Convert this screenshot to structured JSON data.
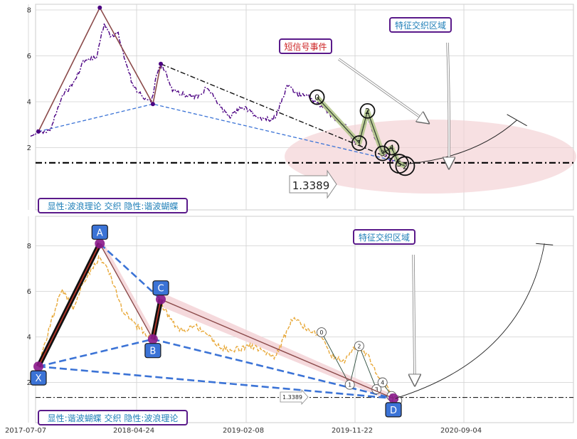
{
  "colors": {
    "price_top": "#4b0082",
    "price_bottom": "#e8a93a",
    "wave_line": "#8b4a4a",
    "support_line": "#3b73d6",
    "bar_fill": "#2b2b2b",
    "pink_zone": "#f2cfd3",
    "harmonic_point": "#8b1a8b",
    "label_box": "#3b73d6",
    "text_blue": "#1f7fb8",
    "text_red": "#cc2222",
    "border_purple": "#5a1a8a"
  },
  "annotations": {
    "top_feature": "特征交织区域",
    "top_signal": "短信号事件",
    "top_level": "1.3389",
    "top_legend": "显性:波浪理论 交织 隐性:谐波蝴蝶",
    "bottom_feature": "特征交织区域",
    "bottom_level": "1.3389",
    "bottom_legend": "显性:谐波蝴蝶 交织 隐性:波浪理论"
  },
  "chart_data": [
    {
      "type": "line",
      "panel": "top",
      "x_ticks": [
        "2017-07-07",
        "2018-04-24",
        "2019-02-08",
        "2019-11-22",
        "2020-09-04"
      ],
      "y_ticks": [
        2,
        4,
        6,
        8
      ],
      "ylim": [
        0.6,
        9.2
      ],
      "grid": true,
      "series": [
        {
          "style": "dash-dot price",
          "points": [
            [
              "2017-07-20",
              2.5
            ],
            [
              "2017-08-10",
              2.7
            ],
            [
              "2017-09-10",
              2.7
            ],
            [
              "2017-10-10",
              4.2
            ],
            [
              "2017-11-10",
              4.8
            ],
            [
              "2017-12-10",
              5.8
            ],
            [
              "2018-01-10",
              5.9
            ],
            [
              "2018-02-01",
              7.4
            ],
            [
              "2018-02-20",
              6.8
            ],
            [
              "2018-03-10",
              7.0
            ],
            [
              "2018-04-01",
              5.6
            ],
            [
              "2018-04-20",
              4.6
            ],
            [
              "2018-05-10",
              4.3
            ],
            [
              "2018-06-05",
              4.0
            ],
            [
              "2018-06-25",
              5.5
            ],
            [
              "2018-07-05",
              5.6
            ],
            [
              "2018-08-01",
              4.5
            ],
            [
              "2018-09-01",
              4.3
            ],
            [
              "2018-10-01",
              4.2
            ],
            [
              "2018-11-01",
              4.6
            ],
            [
              "2018-12-01",
              3.9
            ],
            [
              "2019-01-01",
              3.3
            ],
            [
              "2019-02-01",
              3.8
            ],
            [
              "2019-03-01",
              3.5
            ],
            [
              "2019-04-01",
              3.2
            ],
            [
              "2019-05-01",
              3.3
            ],
            [
              "2019-06-01",
              4.7
            ],
            [
              "2019-07-01",
              4.3
            ],
            [
              "2019-08-01",
              4.2
            ],
            [
              "2019-09-01",
              3.8
            ],
            [
              "2019-10-01",
              3.3
            ],
            [
              "2019-11-01",
              3.0
            ],
            [
              "2019-12-01",
              2.2
            ],
            [
              "2020-01-01",
              3.3
            ],
            [
              "2020-02-01",
              2.0
            ],
            [
              "2020-03-01",
              1.5
            ],
            [
              "2020-04-01",
              1.4
            ]
          ]
        },
        {
          "style": "wave zigzag",
          "points": [
            [
              "2017-08-10",
              2.7
            ],
            [
              "2018-01-20",
              8.1
            ],
            [
              "2018-06-10",
              3.9
            ],
            [
              "2018-07-01",
              5.65
            ]
          ]
        },
        {
          "style": "wave count 0-5",
          "points": [
            [
              "2019-08-20",
              4.2
            ],
            [
              "2019-12-10",
              2.2
            ],
            [
              "2020-01-01",
              3.6
            ],
            [
              "2020-02-10",
              1.75
            ],
            [
              "2020-03-05",
              2.0
            ],
            [
              "2020-03-25",
              1.3
            ],
            [
              "2020-04-10",
              1.2
            ]
          ],
          "labels": [
            "0",
            "1",
            "2",
            "3",
            "4",
            "5",
            "2"
          ]
        },
        {
          "style": "dash-dot trend",
          "points": [
            [
              "2018-07-01",
              5.65
            ],
            [
              "2020-04-05",
              1.3
            ]
          ]
        },
        {
          "style": "dashed support",
          "points": [
            [
              "2017-08-10",
              2.7
            ],
            [
              "2018-06-10",
              3.9
            ],
            [
              "2020-03-20",
              1.4
            ]
          ]
        },
        {
          "style": "target arc",
          "points": [
            [
              "2020-04-20",
              1.3
            ],
            [
              "2020-10-15",
              1.6
            ],
            [
              "2021-02-01",
              3.2
            ]
          ]
        }
      ],
      "horizontal_line": 1.3389
    },
    {
      "type": "line",
      "panel": "bottom",
      "x_ticks": [
        "2017-07-07",
        "2018-04-24",
        "2019-02-08",
        "2019-11-22",
        "2020-09-04"
      ],
      "y_ticks": [
        2,
        4,
        6,
        8
      ],
      "ylim": [
        0.6,
        9.2
      ],
      "grid": true,
      "series": [
        {
          "style": "dashed price",
          "points": [
            [
              "2017-08-10",
              2.7
            ],
            [
              "2017-09-10",
              4.5
            ],
            [
              "2017-10-10",
              6.1
            ],
            [
              "2017-11-10",
              5.3
            ],
            [
              "2017-12-10",
              6.5
            ],
            [
              "2018-01-20",
              7.5
            ],
            [
              "2018-02-20",
              6.6
            ],
            [
              "2018-03-20",
              5.2
            ],
            [
              "2018-04-20",
              4.6
            ],
            [
              "2018-05-20",
              4.2
            ],
            [
              "2018-06-10",
              3.9
            ],
            [
              "2018-07-01",
              5.5
            ],
            [
              "2018-08-01",
              4.6
            ],
            [
              "2018-09-01",
              4.2
            ],
            [
              "2018-10-01",
              4.5
            ],
            [
              "2018-11-01",
              4.1
            ],
            [
              "2018-12-01",
              3.6
            ],
            [
              "2019-01-01",
              3.4
            ],
            [
              "2019-03-01",
              3.6
            ],
            [
              "2019-05-01",
              3.1
            ],
            [
              "2019-06-15",
              4.8
            ],
            [
              "2019-08-01",
              4.3
            ],
            [
              "2019-09-01",
              4.0
            ],
            [
              "2019-10-01",
              3.1
            ],
            [
              "2019-11-01",
              2.9
            ],
            [
              "2019-12-01",
              3.6
            ],
            [
              "2020-01-01",
              3.2
            ],
            [
              "2020-02-01",
              2.2
            ],
            [
              "2020-03-01",
              1.6
            ]
          ]
        },
        {
          "style": "harmonic butterfly",
          "points": [
            [
              "2017-08-10",
              2.7
            ],
            [
              "2018-01-20",
              8.1
            ],
            [
              "2018-06-10",
              3.9
            ],
            [
              "2018-07-01",
              5.65
            ],
            [
              "2020-03-10",
              1.3
            ]
          ],
          "labels": [
            "X",
            "A",
            "B",
            "C",
            "D"
          ]
        },
        {
          "style": "wave count",
          "points": [
            [
              "2019-09-01",
              4.2
            ],
            [
              "2019-11-15",
              1.9
            ],
            [
              "2019-12-10",
              3.6
            ],
            [
              "2020-01-25",
              1.7
            ],
            [
              "2020-02-10",
              2.0
            ],
            [
              "2020-03-05",
              1.4
            ],
            [
              "2020-03-20",
              1.2
            ]
          ],
          "labels": [
            "0",
            "1",
            "2",
            "3",
            "4",
            "5",
            "2"
          ]
        },
        {
          "style": "target arc",
          "points": [
            [
              "2020-03-15",
              1.3
            ],
            [
              "2020-09-01",
              1.8
            ],
            [
              "2021-04-15",
              8.1
            ]
          ]
        }
      ],
      "horizontal_line": 1.3389
    }
  ]
}
